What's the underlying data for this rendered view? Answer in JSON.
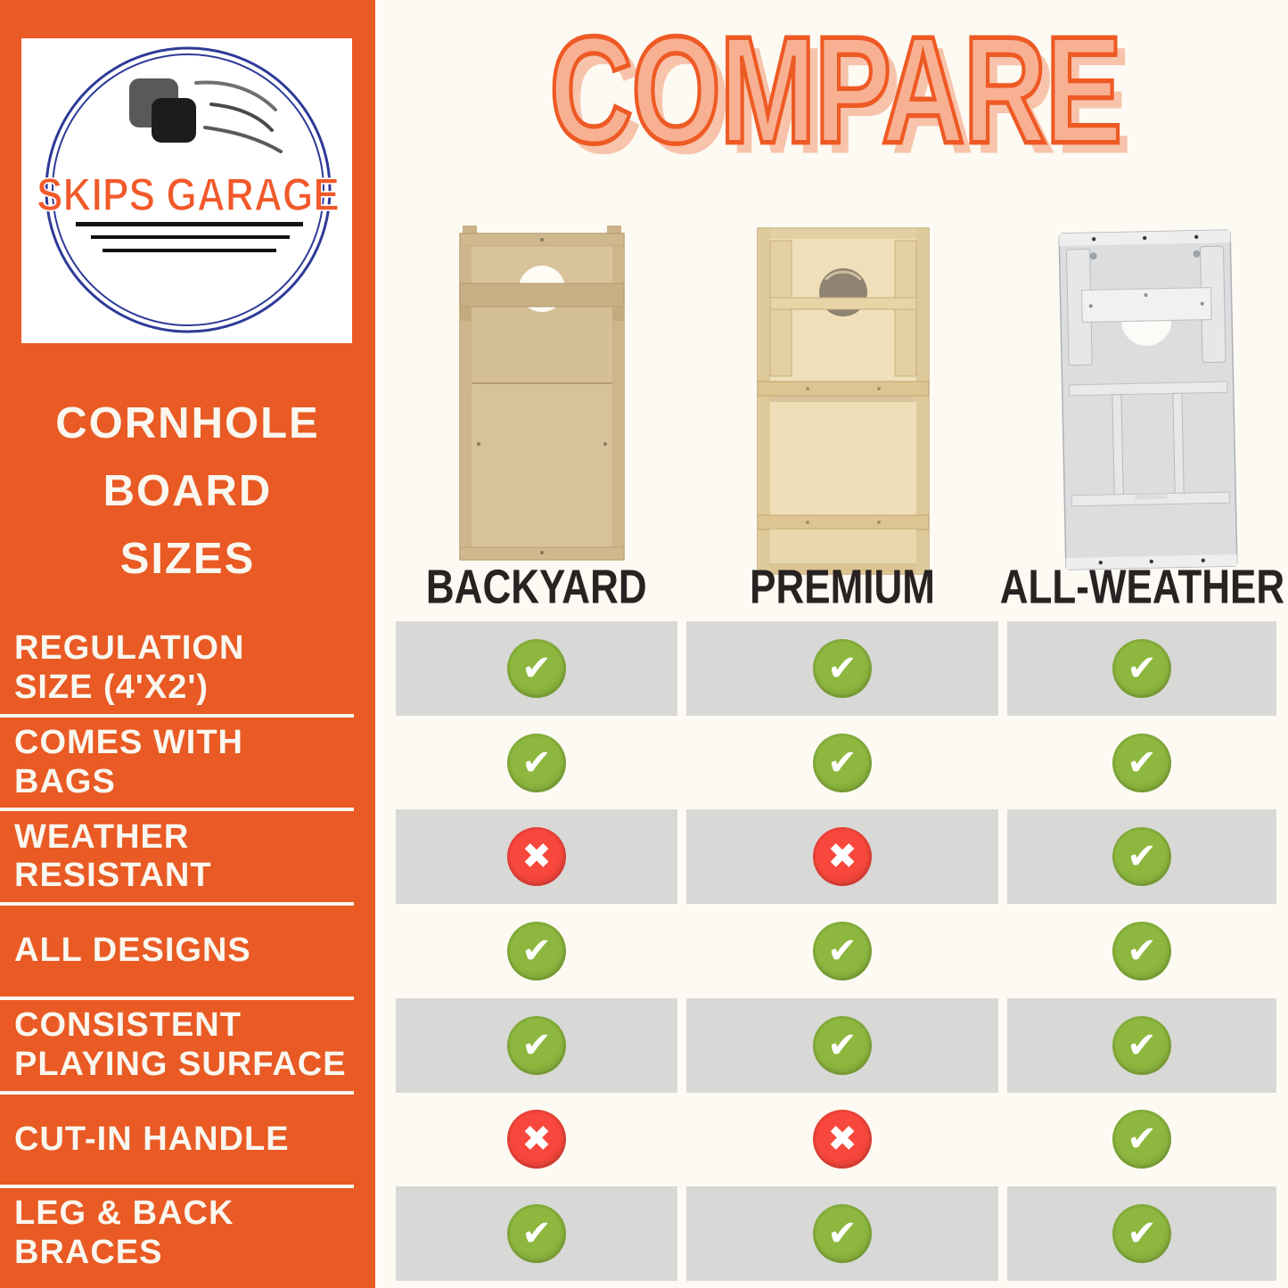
{
  "page": {
    "background": "#FCFAF2"
  },
  "branding": {
    "logo_text": "SKIPS GARAGE",
    "logo_icon": "bean-bags-toss-icon",
    "colors": {
      "orange": "#E95A24",
      "navy": "#2E3A97",
      "logo_orange": "#F1592A"
    }
  },
  "header": {
    "title": "COMPARE"
  },
  "sidebar": {
    "title_lines": [
      "CORNHOLE",
      "BOARD",
      "SIZES"
    ],
    "features": [
      {
        "lines": "REGULATION\nSIZE (4'X2')"
      },
      {
        "lines": "COMES WITH\nBAGS"
      },
      {
        "lines": "WEATHER\nRESISTANT"
      },
      {
        "lines": "ALL DESIGNS"
      },
      {
        "lines": "CONSISTENT\nPLAYING SURFACE"
      },
      {
        "lines": "CUT-IN HANDLE"
      },
      {
        "lines": "LEG & BACK\nBRACES"
      }
    ]
  },
  "products": [
    {
      "name": "BACKYARD"
    },
    {
      "name": "PREMIUM"
    },
    {
      "name": "ALL-WEATHER"
    }
  ],
  "icons": {
    "check_glyph": "✔",
    "cross_glyph": "✖",
    "check_color": "#8DB73E",
    "cross_color": "#F8473C"
  },
  "chart_data": {
    "type": "table",
    "title": "COMPARE",
    "subtitle": "CORNHOLE BOARD SIZES",
    "columns": [
      "BACKYARD",
      "PREMIUM",
      "ALL-WEATHER"
    ],
    "rows": [
      {
        "feature": "REGULATION SIZE (4'X2')",
        "values": [
          true,
          true,
          true
        ]
      },
      {
        "feature": "COMES WITH BAGS",
        "values": [
          true,
          true,
          true
        ]
      },
      {
        "feature": "WEATHER RESISTANT",
        "values": [
          false,
          false,
          true
        ]
      },
      {
        "feature": "ALL DESIGNS",
        "values": [
          true,
          true,
          true
        ]
      },
      {
        "feature": "CONSISTENT PLAYING SURFACE",
        "values": [
          true,
          true,
          true
        ]
      },
      {
        "feature": "CUT-IN HANDLE",
        "values": [
          false,
          false,
          true
        ]
      },
      {
        "feature": "LEG & BACK BRACES",
        "values": [
          true,
          true,
          true
        ]
      }
    ],
    "layout": {
      "row_stripe_colors": [
        "#D8D8D7",
        "#FCFAF2"
      ],
      "true_marker": "green-check",
      "false_marker": "red-x"
    }
  }
}
